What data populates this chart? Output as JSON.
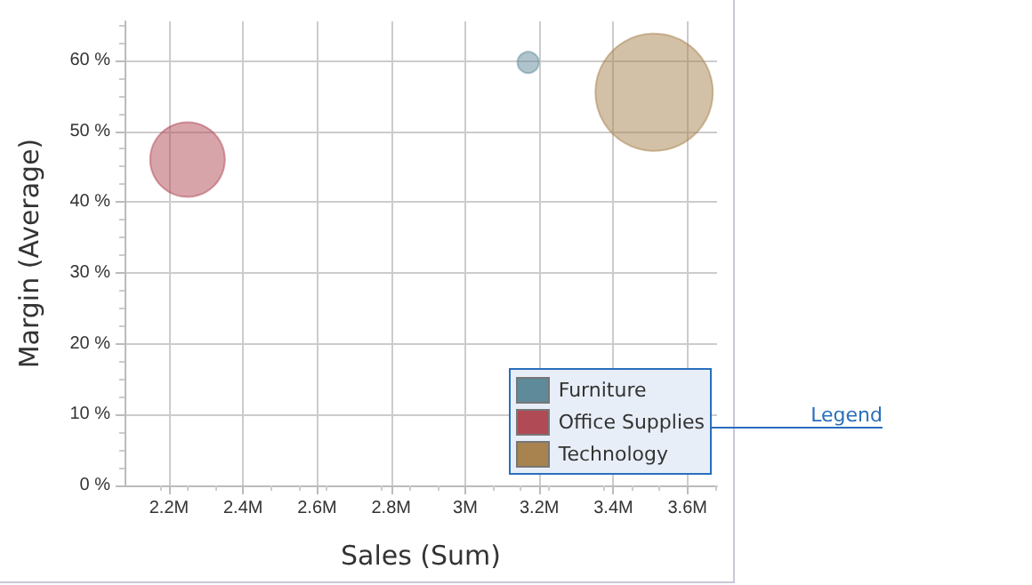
{
  "chart_data": {
    "type": "bubble",
    "xlabel": "Sales (Sum)",
    "ylabel": "Margin (Average)",
    "series": [
      {
        "name": "Furniture",
        "color": "#5f8a9a",
        "x": [
          3170000
        ],
        "values": [
          59.7
        ],
        "sizes": [
          0.033
        ]
      },
      {
        "name": "Office Supplies",
        "color": "#b04a55",
        "x": [
          2250000
        ],
        "values": [
          46
        ],
        "sizes": [
          0.405
        ]
      },
      {
        "name": "Technology",
        "color": "#a8834f",
        "x": [
          3510000
        ],
        "values": [
          55.5
        ],
        "sizes": [
          1
        ]
      }
    ],
    "xlim": [
      2080000,
      3680000
    ],
    "xticks": [
      {
        "value": 2200000,
        "label": "2.2M"
      },
      {
        "value": 2400000,
        "label": "2.4M"
      },
      {
        "value": 2600000,
        "label": "2.6M"
      },
      {
        "value": 2800000,
        "label": "2.8M"
      },
      {
        "value": 3000000,
        "label": "3M"
      },
      {
        "value": 3200000,
        "label": "3.2M"
      },
      {
        "value": 3400000,
        "label": "3.4M"
      },
      {
        "value": 3600000,
        "label": "3.6M"
      }
    ],
    "ylim": [
      0,
      65.5
    ],
    "yticks": [
      {
        "value": 0,
        "label": "0 %"
      },
      {
        "value": 10,
        "label": "10 %"
      },
      {
        "value": 20,
        "label": "20 %"
      },
      {
        "value": 30,
        "label": "30 %"
      },
      {
        "value": 40,
        "label": "40 %"
      },
      {
        "value": 50,
        "label": "50 %"
      },
      {
        "value": 60,
        "label": "60 %"
      }
    ],
    "grid": true,
    "legend": "bottom right",
    "marker": "circle",
    "annotations": [
      "Legend"
    ]
  }
}
